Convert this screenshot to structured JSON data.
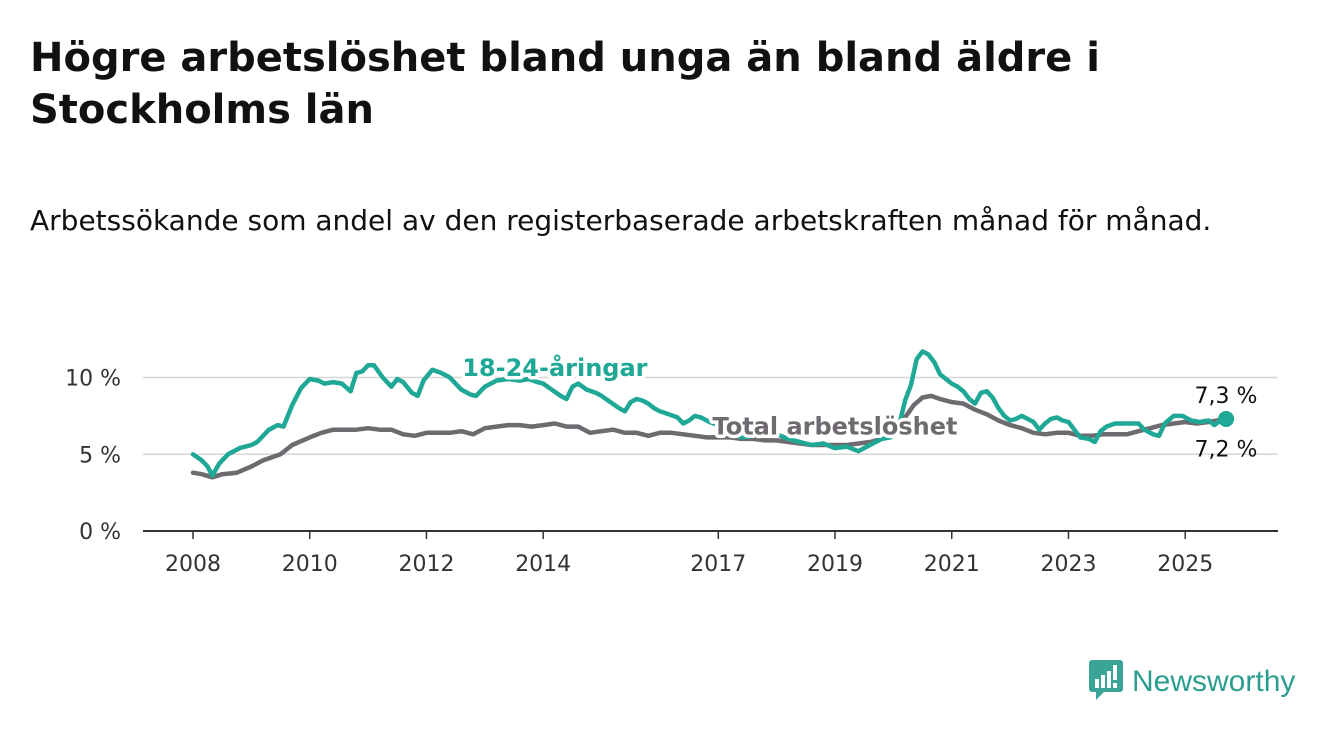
{
  "title": "Högre arbetslöshet bland unga än bland äldre i Stockholms län",
  "subtitle": "Arbetssökande som andel av den registerbaserade arbetskraften månad för månad.",
  "brand": {
    "name": "Newsworthy",
    "icon": "newsworthy-logo-icon",
    "color": "#3aa597"
  },
  "chart_data": {
    "type": "line",
    "title": "Högre arbetslöshet bland unga än bland äldre i Stockholms län",
    "subtitle": "Arbetssökande som andel av den registerbaserade arbetskraften månad för månad.",
    "xlabel": "",
    "ylabel": "",
    "xlim": [
      2008,
      2025.75
    ],
    "ylim": [
      0,
      12
    ],
    "y_ticks": [
      0,
      5,
      10
    ],
    "y_tick_labels": [
      "0 %",
      "5 %",
      "10 %"
    ],
    "x_ticks": [
      2008,
      2010,
      2012,
      2014,
      2017,
      2019,
      2021,
      2023,
      2025
    ],
    "x_tick_labels": [
      "2008",
      "2010",
      "2012",
      "2014",
      "2017",
      "2019",
      "2021",
      "2023",
      "2025"
    ],
    "grid": true,
    "series": [
      {
        "name": "18-24-åringar",
        "color": "#1fa896",
        "points": [
          [
            2008.0,
            5.0
          ],
          [
            2008.15,
            4.6
          ],
          [
            2008.25,
            4.2
          ],
          [
            2008.33,
            3.6
          ],
          [
            2008.45,
            4.4
          ],
          [
            2008.6,
            5.0
          ],
          [
            2008.8,
            5.4
          ],
          [
            2009.0,
            5.6
          ],
          [
            2009.1,
            5.8
          ],
          [
            2009.3,
            6.6
          ],
          [
            2009.45,
            6.9
          ],
          [
            2009.55,
            6.8
          ],
          [
            2009.7,
            8.2
          ],
          [
            2009.85,
            9.3
          ],
          [
            2010.0,
            9.9
          ],
          [
            2010.15,
            9.8
          ],
          [
            2010.25,
            9.6
          ],
          [
            2010.4,
            9.7
          ],
          [
            2010.55,
            9.6
          ],
          [
            2010.7,
            9.1
          ],
          [
            2010.8,
            10.3
          ],
          [
            2010.9,
            10.4
          ],
          [
            2011.0,
            10.8
          ],
          [
            2011.1,
            10.8
          ],
          [
            2011.25,
            10.0
          ],
          [
            2011.4,
            9.4
          ],
          [
            2011.5,
            9.9
          ],
          [
            2011.6,
            9.7
          ],
          [
            2011.75,
            9.0
          ],
          [
            2011.85,
            8.8
          ],
          [
            2011.95,
            9.8
          ],
          [
            2012.1,
            10.5
          ],
          [
            2012.25,
            10.3
          ],
          [
            2012.4,
            10.0
          ],
          [
            2012.5,
            9.6
          ],
          [
            2012.6,
            9.2
          ],
          [
            2012.75,
            8.9
          ],
          [
            2012.85,
            8.8
          ],
          [
            2013.0,
            9.4
          ],
          [
            2013.2,
            9.8
          ],
          [
            2013.4,
            9.9
          ],
          [
            2013.6,
            9.8
          ],
          [
            2013.75,
            9.9
          ],
          [
            2013.9,
            9.7
          ],
          [
            2014.0,
            9.6
          ],
          [
            2014.15,
            9.2
          ],
          [
            2014.3,
            8.8
          ],
          [
            2014.4,
            8.6
          ],
          [
            2014.5,
            9.4
          ],
          [
            2014.6,
            9.6
          ],
          [
            2014.75,
            9.2
          ],
          [
            2014.9,
            9.0
          ],
          [
            2015.0,
            8.8
          ],
          [
            2015.15,
            8.4
          ],
          [
            2015.3,
            8.0
          ],
          [
            2015.4,
            7.8
          ],
          [
            2015.5,
            8.4
          ],
          [
            2015.6,
            8.6
          ],
          [
            2015.7,
            8.5
          ],
          [
            2015.8,
            8.3
          ],
          [
            2015.9,
            8.0
          ],
          [
            2016.0,
            7.8
          ],
          [
            2016.15,
            7.6
          ],
          [
            2016.3,
            7.4
          ],
          [
            2016.4,
            7.0
          ],
          [
            2016.5,
            7.2
          ],
          [
            2016.6,
            7.5
          ],
          [
            2016.7,
            7.4
          ],
          [
            2016.85,
            7.1
          ],
          [
            2017.0,
            6.9
          ],
          [
            2017.15,
            6.5
          ],
          [
            2017.25,
            6.3
          ],
          [
            2017.4,
            6.1
          ],
          [
            2017.6,
            6.2
          ],
          [
            2017.8,
            6.5
          ],
          [
            2018.0,
            6.3
          ],
          [
            2018.2,
            6.0
          ],
          [
            2018.4,
            5.8
          ],
          [
            2018.6,
            5.6
          ],
          [
            2018.8,
            5.7
          ],
          [
            2019.0,
            5.4
          ],
          [
            2019.2,
            5.5
          ],
          [
            2019.4,
            5.2
          ],
          [
            2019.6,
            5.6
          ],
          [
            2019.8,
            6.0
          ],
          [
            2019.95,
            6.1
          ],
          [
            2020.0,
            6.4
          ],
          [
            2020.1,
            6.9
          ],
          [
            2020.2,
            8.5
          ],
          [
            2020.3,
            9.5
          ],
          [
            2020.4,
            11.2
          ],
          [
            2020.5,
            11.7
          ],
          [
            2020.6,
            11.5
          ],
          [
            2020.7,
            11.0
          ],
          [
            2020.8,
            10.2
          ],
          [
            2020.9,
            9.9
          ],
          [
            2021.0,
            9.6
          ],
          [
            2021.1,
            9.4
          ],
          [
            2021.2,
            9.1
          ],
          [
            2021.3,
            8.6
          ],
          [
            2021.4,
            8.3
          ],
          [
            2021.5,
            9.0
          ],
          [
            2021.6,
            9.1
          ],
          [
            2021.7,
            8.7
          ],
          [
            2021.8,
            8.0
          ],
          [
            2021.9,
            7.5
          ],
          [
            2022.0,
            7.2
          ],
          [
            2022.1,
            7.3
          ],
          [
            2022.2,
            7.5
          ],
          [
            2022.3,
            7.3
          ],
          [
            2022.4,
            7.1
          ],
          [
            2022.5,
            6.6
          ],
          [
            2022.6,
            7.0
          ],
          [
            2022.7,
            7.3
          ],
          [
            2022.8,
            7.4
          ],
          [
            2022.9,
            7.2
          ],
          [
            2023.0,
            7.1
          ],
          [
            2023.1,
            6.6
          ],
          [
            2023.2,
            6.1
          ],
          [
            2023.35,
            6.0
          ],
          [
            2023.45,
            5.8
          ],
          [
            2023.55,
            6.5
          ],
          [
            2023.65,
            6.8
          ],
          [
            2023.8,
            7.0
          ],
          [
            2023.95,
            7.0
          ],
          [
            2024.1,
            7.0
          ],
          [
            2024.2,
            7.0
          ],
          [
            2024.3,
            6.6
          ],
          [
            2024.45,
            6.3
          ],
          [
            2024.55,
            6.2
          ],
          [
            2024.65,
            7.0
          ],
          [
            2024.8,
            7.5
          ],
          [
            2024.95,
            7.5
          ],
          [
            2025.1,
            7.2
          ],
          [
            2025.25,
            7.1
          ],
          [
            2025.4,
            7.2
          ],
          [
            2025.5,
            6.9
          ],
          [
            2025.6,
            7.2
          ],
          [
            2025.7,
            7.3
          ]
        ]
      },
      {
        "name": "Total arbetslöshet",
        "color": "#6e6a70",
        "points": [
          [
            2008.0,
            3.8
          ],
          [
            2008.15,
            3.7
          ],
          [
            2008.33,
            3.5
          ],
          [
            2008.5,
            3.7
          ],
          [
            2008.75,
            3.8
          ],
          [
            2009.0,
            4.2
          ],
          [
            2009.2,
            4.6
          ],
          [
            2009.5,
            5.0
          ],
          [
            2009.7,
            5.6
          ],
          [
            2010.0,
            6.1
          ],
          [
            2010.2,
            6.4
          ],
          [
            2010.4,
            6.6
          ],
          [
            2010.6,
            6.6
          ],
          [
            2010.8,
            6.6
          ],
          [
            2011.0,
            6.7
          ],
          [
            2011.2,
            6.6
          ],
          [
            2011.4,
            6.6
          ],
          [
            2011.6,
            6.3
          ],
          [
            2011.8,
            6.2
          ],
          [
            2012.0,
            6.4
          ],
          [
            2012.2,
            6.4
          ],
          [
            2012.4,
            6.4
          ],
          [
            2012.6,
            6.5
          ],
          [
            2012.8,
            6.3
          ],
          [
            2013.0,
            6.7
          ],
          [
            2013.2,
            6.8
          ],
          [
            2013.4,
            6.9
          ],
          [
            2013.6,
            6.9
          ],
          [
            2013.8,
            6.8
          ],
          [
            2014.0,
            6.9
          ],
          [
            2014.2,
            7.0
          ],
          [
            2014.4,
            6.8
          ],
          [
            2014.6,
            6.8
          ],
          [
            2014.8,
            6.4
          ],
          [
            2015.0,
            6.5
          ],
          [
            2015.2,
            6.6
          ],
          [
            2015.4,
            6.4
          ],
          [
            2015.6,
            6.4
          ],
          [
            2015.8,
            6.2
          ],
          [
            2016.0,
            6.4
          ],
          [
            2016.2,
            6.4
          ],
          [
            2016.4,
            6.3
          ],
          [
            2016.6,
            6.2
          ],
          [
            2016.8,
            6.1
          ],
          [
            2017.0,
            6.1
          ],
          [
            2017.2,
            6.1
          ],
          [
            2017.4,
            6.0
          ],
          [
            2017.6,
            6.0
          ],
          [
            2017.8,
            5.9
          ],
          [
            2018.0,
            5.9
          ],
          [
            2018.2,
            5.8
          ],
          [
            2018.4,
            5.7
          ],
          [
            2018.6,
            5.6
          ],
          [
            2018.8,
            5.6
          ],
          [
            2019.0,
            5.6
          ],
          [
            2019.2,
            5.6
          ],
          [
            2019.4,
            5.7
          ],
          [
            2019.6,
            5.8
          ],
          [
            2019.8,
            6.0
          ],
          [
            2020.0,
            6.3
          ],
          [
            2020.1,
            6.7
          ],
          [
            2020.2,
            7.4
          ],
          [
            2020.35,
            8.2
          ],
          [
            2020.5,
            8.7
          ],
          [
            2020.65,
            8.8
          ],
          [
            2020.8,
            8.6
          ],
          [
            2021.0,
            8.4
          ],
          [
            2021.2,
            8.3
          ],
          [
            2021.4,
            7.9
          ],
          [
            2021.6,
            7.6
          ],
          [
            2021.8,
            7.2
          ],
          [
            2022.0,
            6.9
          ],
          [
            2022.2,
            6.7
          ],
          [
            2022.4,
            6.4
          ],
          [
            2022.6,
            6.3
          ],
          [
            2022.8,
            6.4
          ],
          [
            2023.0,
            6.4
          ],
          [
            2023.2,
            6.2
          ],
          [
            2023.4,
            6.2
          ],
          [
            2023.6,
            6.3
          ],
          [
            2023.8,
            6.3
          ],
          [
            2024.0,
            6.3
          ],
          [
            2024.2,
            6.5
          ],
          [
            2024.4,
            6.7
          ],
          [
            2024.6,
            6.9
          ],
          [
            2024.8,
            7.0
          ],
          [
            2025.0,
            7.1
          ],
          [
            2025.2,
            7.0
          ],
          [
            2025.4,
            7.1
          ],
          [
            2025.55,
            7.2
          ],
          [
            2025.7,
            7.2
          ]
        ]
      }
    ],
    "series_labels": [
      {
        "text": "18-24-åringar",
        "series": 0,
        "x": 2014.2,
        "y": 10.1
      },
      {
        "text": "Total arbetslöshet",
        "series": 1,
        "x": 2019.0,
        "y": 6.3
      }
    ],
    "end_labels": [
      {
        "text": "7,3 %",
        "series": 0
      },
      {
        "text": "7,2 %",
        "series": 1
      }
    ]
  }
}
